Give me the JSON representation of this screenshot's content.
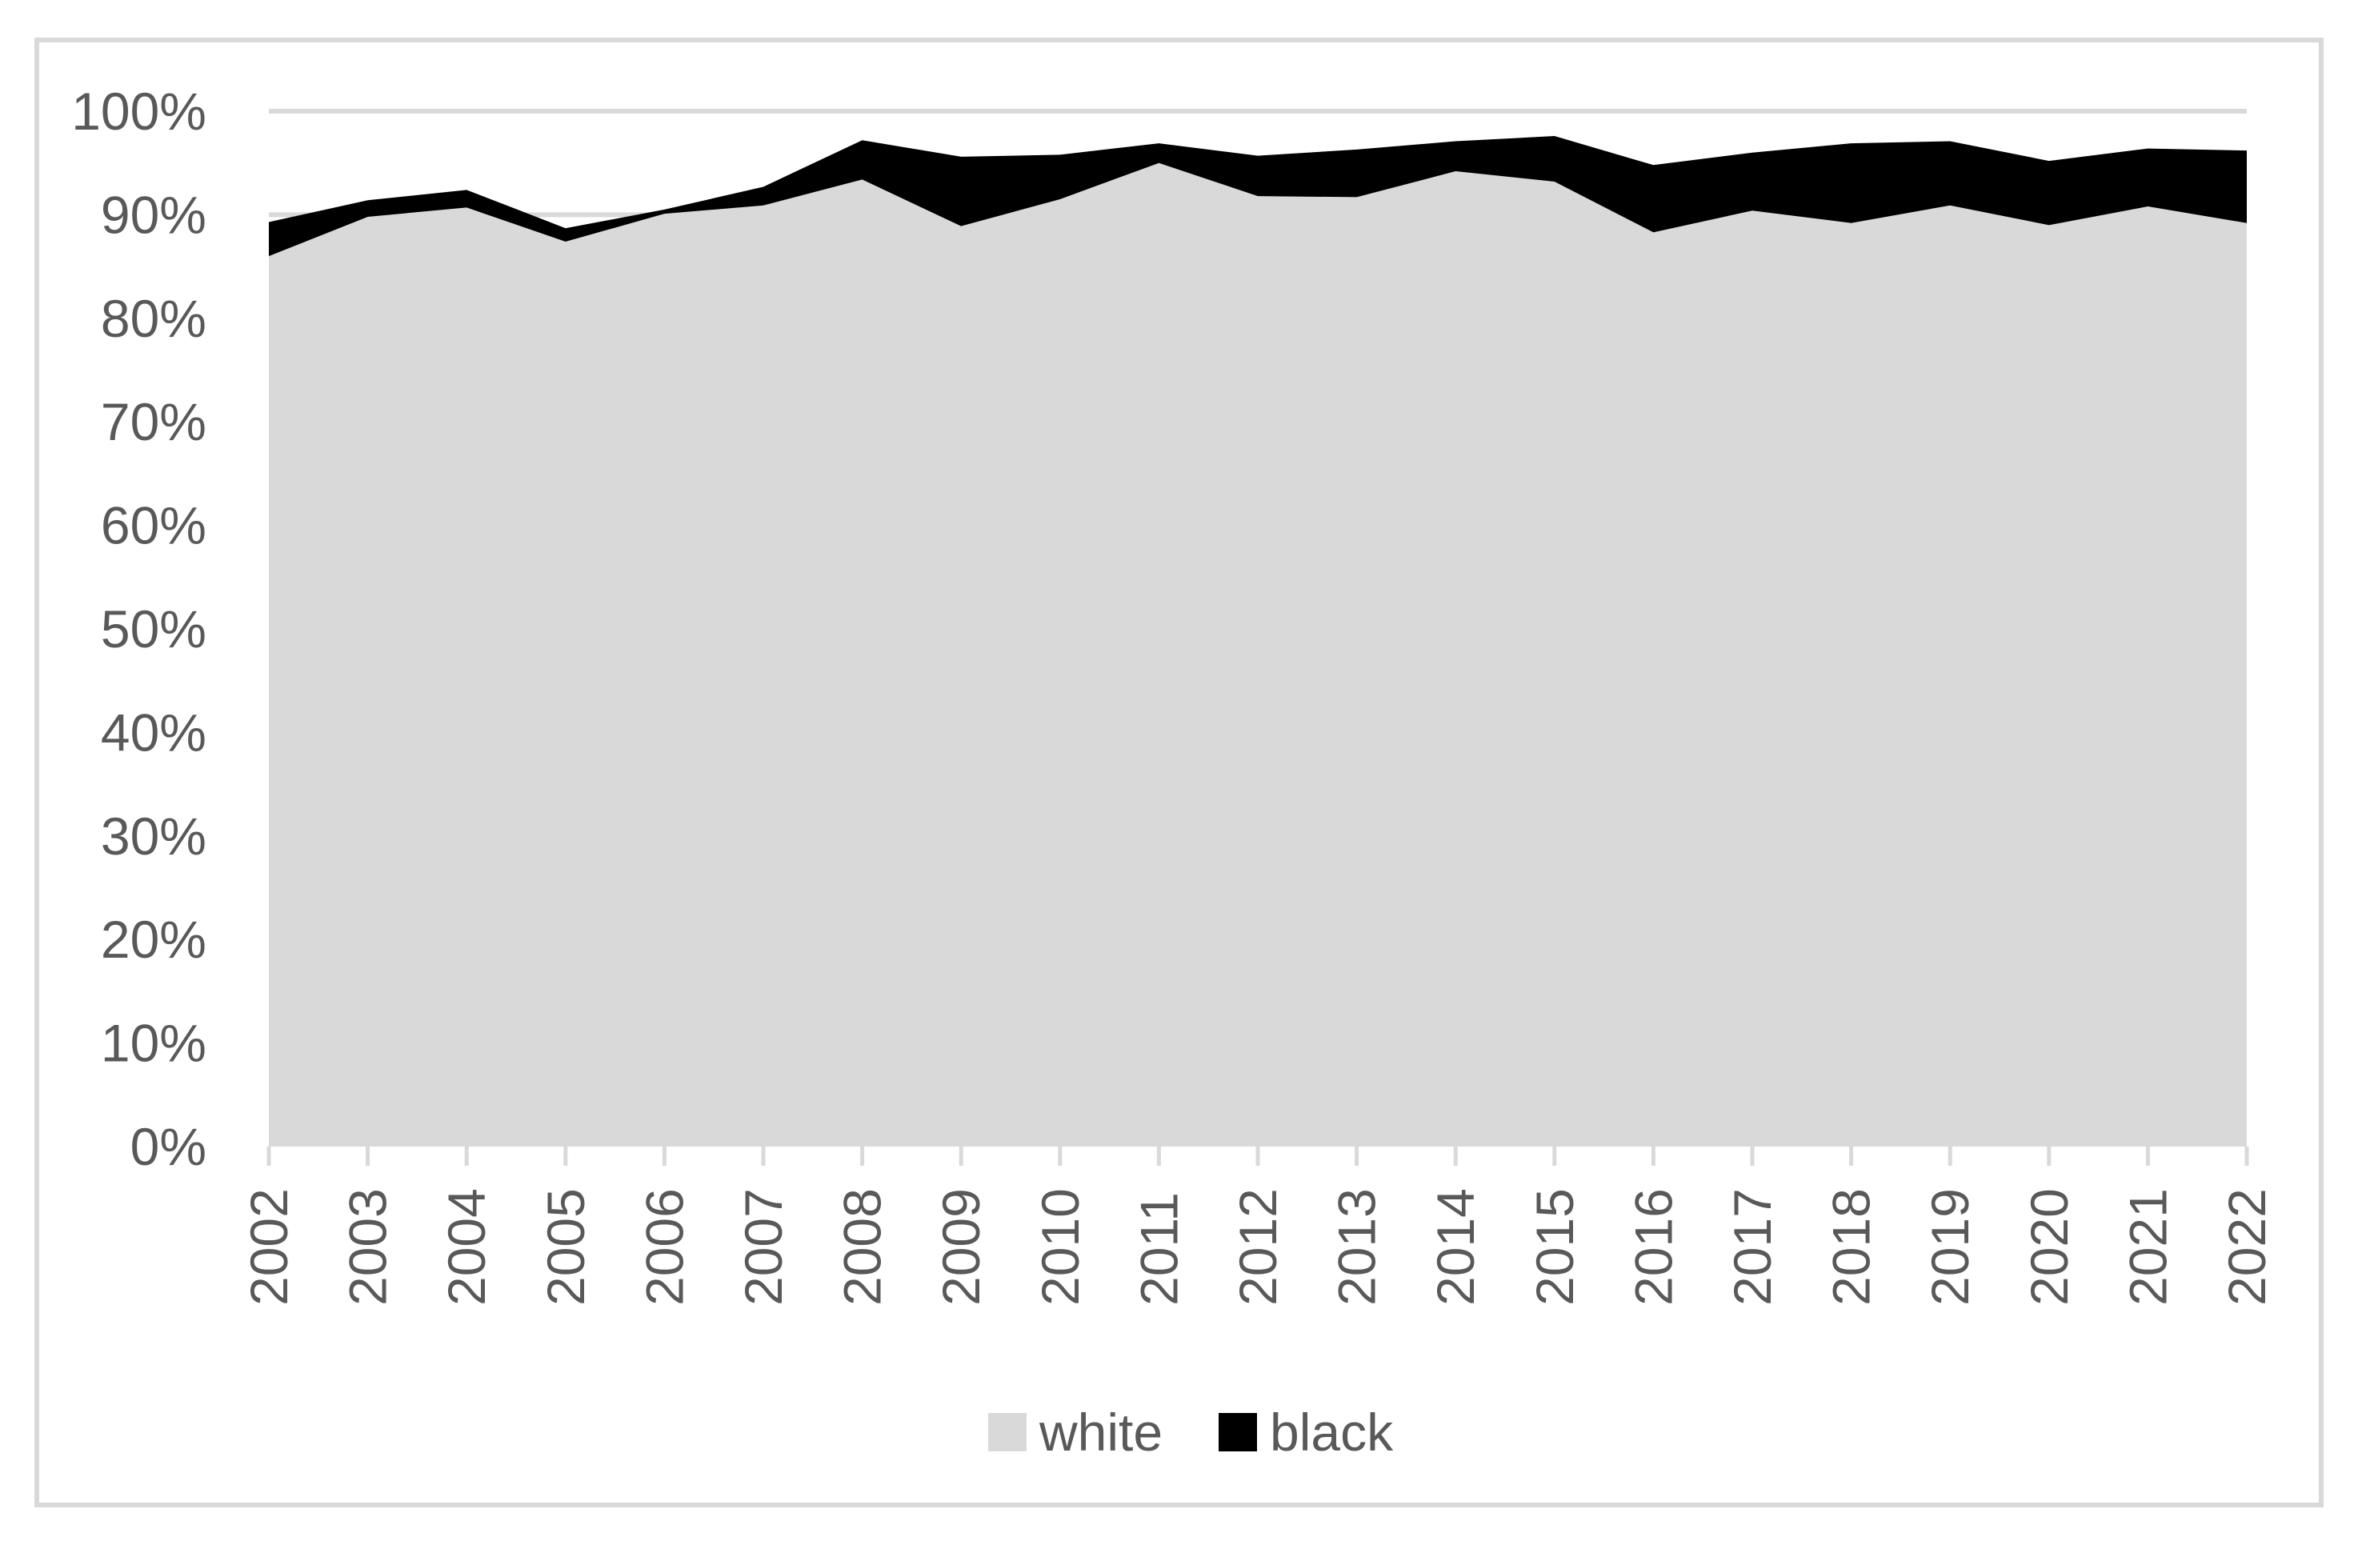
{
  "chart_data": {
    "type": "area",
    "stacked": true,
    "title": "",
    "categories": [
      "2002",
      "2003",
      "2004",
      "2005",
      "2006",
      "2007",
      "2008",
      "2009",
      "2010",
      "2011",
      "2012",
      "2013",
      "2014",
      "2015",
      "2016",
      "2017",
      "2018",
      "2019",
      "2020",
      "2021",
      "2022"
    ],
    "series": [
      {
        "name": "white",
        "color": "#d9d9d9",
        "values": [
          86.0,
          89.8,
          90.7,
          87.4,
          90.1,
          90.9,
          93.4,
          88.9,
          91.5,
          95.0,
          91.8,
          91.7,
          94.2,
          93.2,
          88.3,
          90.4,
          89.2,
          90.9,
          89.0,
          90.8,
          89.2
        ]
      },
      {
        "name": "black",
        "color": "#000000",
        "values": [
          3.3,
          1.6,
          1.7,
          1.3,
          0.4,
          1.8,
          3.8,
          6.7,
          4.3,
          1.9,
          3.9,
          4.6,
          2.9,
          4.4,
          6.5,
          5.6,
          7.7,
          6.2,
          6.2,
          5.6,
          7.0
        ]
      }
    ],
    "xlabel": "",
    "ylabel": "",
    "ylim": [
      0,
      100
    ],
    "y_tick_labels": [
      "0%",
      "10%",
      "20%",
      "30%",
      "40%",
      "50%",
      "60%",
      "70%",
      "80%",
      "90%",
      "100%"
    ],
    "x_label_rotation_deg": -90,
    "grid": "horizontal-major",
    "legend": {
      "position": "bottom",
      "items": [
        {
          "label": "white",
          "color": "#d9d9d9"
        },
        {
          "label": "black",
          "color": "#000000"
        }
      ]
    },
    "colors": {
      "text": "#595959",
      "gridline": "#d9d9d9",
      "tick_mark": "#d9d9d9",
      "figure_border": "#d9d9d9",
      "background": "#ffffff"
    }
  }
}
